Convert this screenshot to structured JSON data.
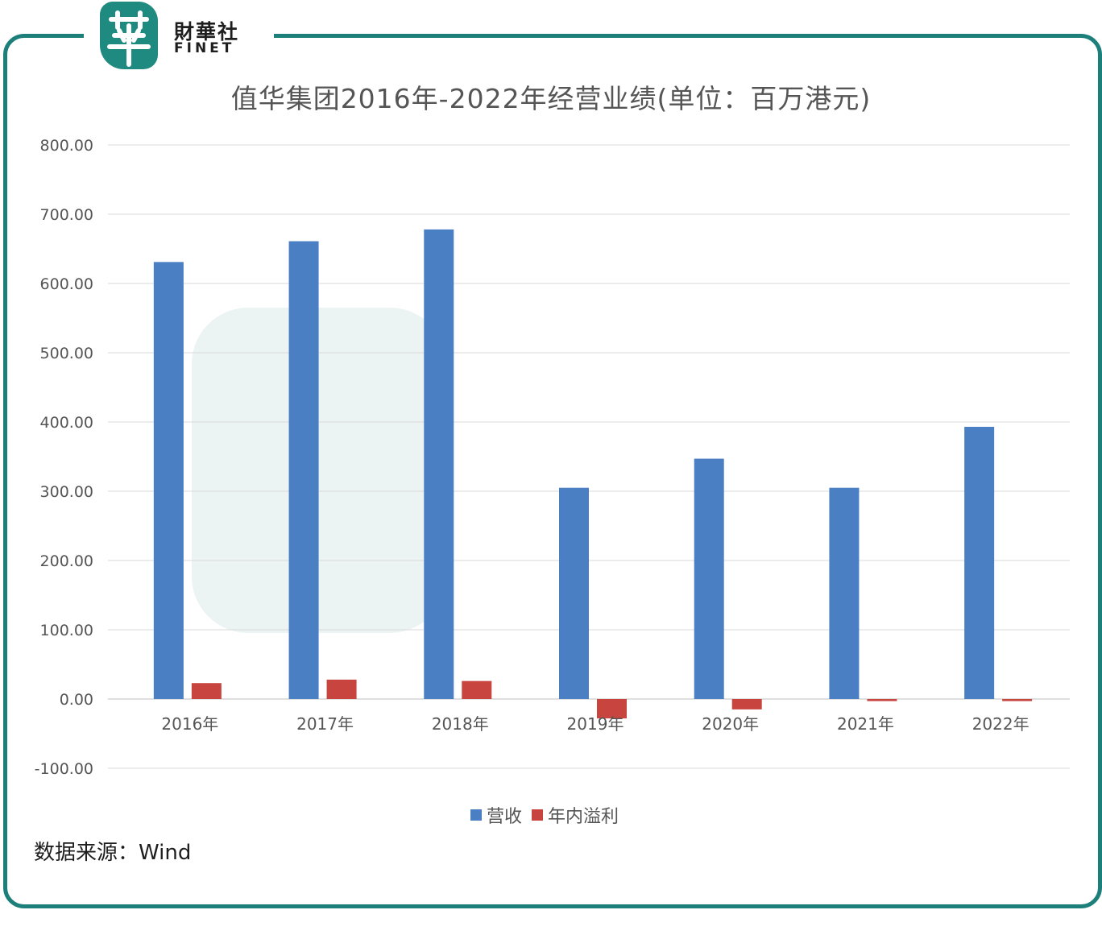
{
  "logo": {
    "text_cn": "財華社",
    "text_en": "FINET"
  },
  "title": "值华集团2016年-2022年经营业绩(单位：百万港元)",
  "source": "数据来源：Wind",
  "colors": {
    "frame": "#1c7f7a",
    "revenue": "#4a7fc4",
    "profit": "#c8453f",
    "grid": "#d9d9d9"
  },
  "chart_data": {
    "type": "bar",
    "categories": [
      "2016年",
      "2017年",
      "2018年",
      "2019年",
      "2020年",
      "2021年",
      "2022年"
    ],
    "series": [
      {
        "name": "营收",
        "values": [
          631,
          661,
          678,
          305,
          347,
          305,
          393
        ]
      },
      {
        "name": "年内溢利",
        "values": [
          23,
          28,
          26,
          -28,
          -15,
          -3,
          -3
        ]
      }
    ],
    "yticks": [
      "800.00",
      "700.00",
      "600.00",
      "500.00",
      "400.00",
      "300.00",
      "200.00",
      "100.00",
      "0.00",
      "-100.00"
    ],
    "ylim": [
      -100,
      800
    ],
    "grid": true,
    "legend": "bottom"
  }
}
